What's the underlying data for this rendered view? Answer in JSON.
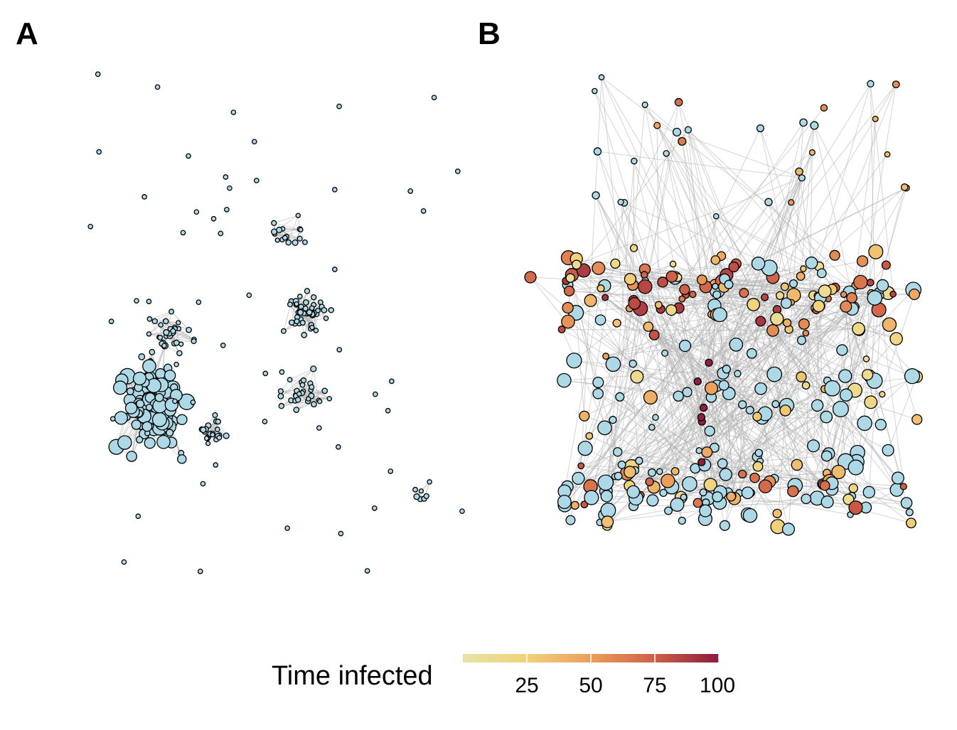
{
  "panels": [
    {
      "label": "A"
    },
    {
      "label": "B"
    }
  ],
  "legend": {
    "title": "Time infected",
    "ticks": [
      "25",
      "50",
      "75",
      "100"
    ],
    "tick_values": [
      25,
      50,
      75,
      100
    ],
    "range": [
      0,
      100
    ],
    "gradient_colors": [
      "#e6e4a8",
      "#f2d27a",
      "#ec9d5c",
      "#cd6047",
      "#8c1a3e"
    ]
  },
  "colors": {
    "uninfected_node": "#add8e6",
    "node_stroke": "#000000",
    "edge": "#b0b0b0"
  }
}
